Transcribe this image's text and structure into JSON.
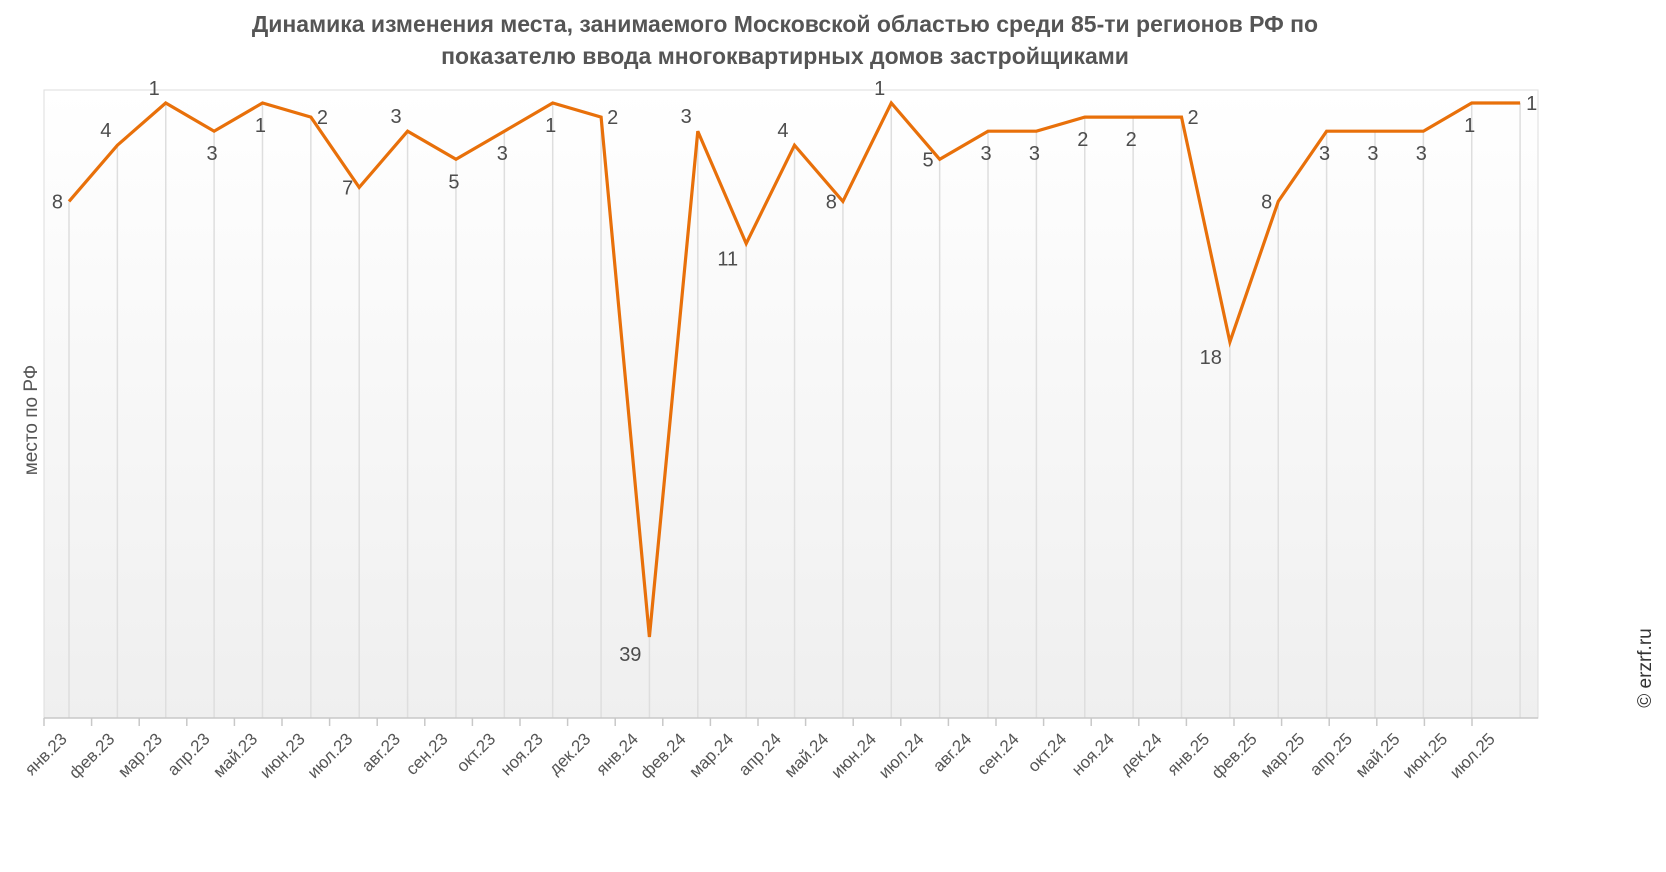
{
  "title_line1": "Динамика изменения места, занимаемого Московской областью среди 85-ти регионов РФ по",
  "title_line2": "показателю ввода многоквартирных домов застройщиками",
  "ylabel": "место по РФ",
  "credit": "© erzrf.ru",
  "colors": {
    "line": "#e8700a",
    "grid": "#dddddd",
    "text": "#555555"
  },
  "chart_data": {
    "type": "line",
    "title": "Динамика изменения места, занимаемого Московской областью среди 85-ти регионов РФ по показателю ввода многоквартирных домов застройщиками",
    "xlabel": "",
    "ylabel": "место по РФ",
    "y_inverted": true,
    "ylim": [
      1,
      45
    ],
    "grid": "vertical",
    "legend": null,
    "categories": [
      "янв.23",
      "фев.23",
      "мар.23",
      "апр.23",
      "май.23",
      "июн.23",
      "июл.23",
      "авг.23",
      "сен.23",
      "окт.23",
      "ноя.23",
      "дек.23",
      "янв.24",
      "фев.24",
      "мар.24",
      "апр.24",
      "май.24",
      "июн.24",
      "июл.24",
      "авг.24",
      "сен.24",
      "окт.24",
      "ноя.24",
      "дек.24",
      "янв.25",
      "фев.25",
      "мар.25",
      "апр.25",
      "май.25",
      "июн.25",
      "июл.25"
    ],
    "series": [
      {
        "name": "место по РФ",
        "values": [
          8,
          4,
          1,
          3,
          1,
          2,
          7,
          3,
          5,
          3,
          1,
          2,
          39,
          3,
          11,
          4,
          8,
          1,
          5,
          3,
          3,
          2,
          2,
          2,
          18,
          8,
          3,
          3,
          3,
          1,
          1
        ]
      }
    ]
  }
}
